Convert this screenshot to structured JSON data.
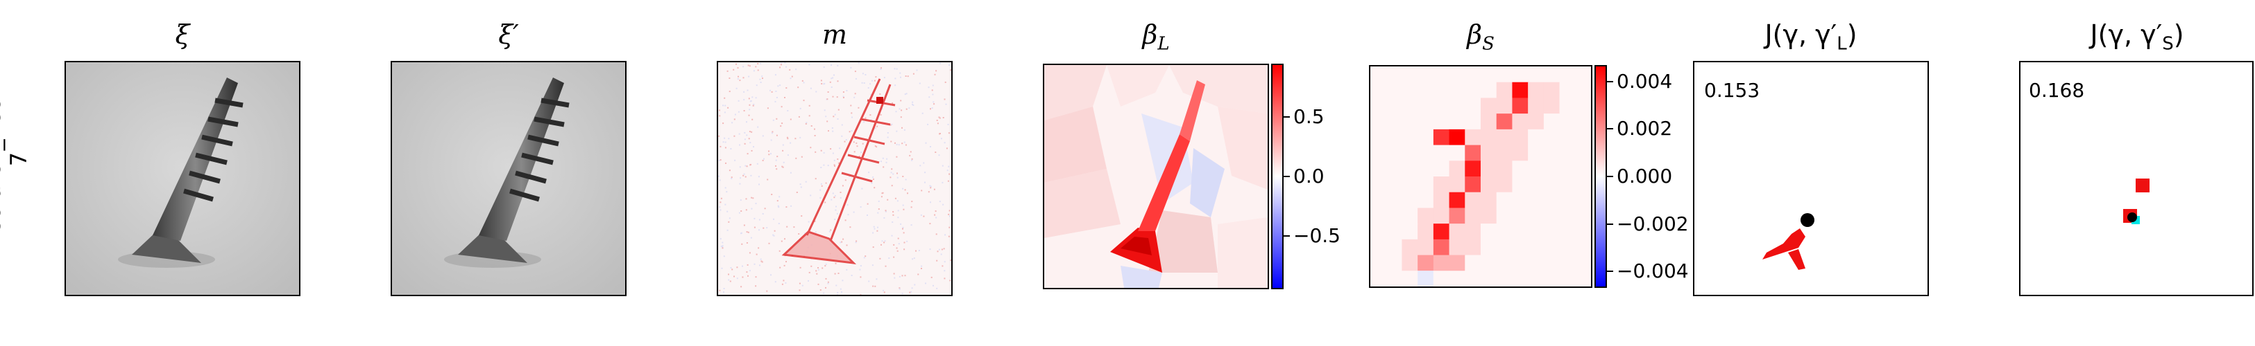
{
  "row_label": {
    "line1": "scratch_neck",
    "line2": "7"
  },
  "panels": {
    "xi": {
      "title": "ξ"
    },
    "xi_prime": {
      "title": "ξ′"
    },
    "m": {
      "title": "m"
    },
    "beta_l": {
      "title": "β",
      "sub": "L"
    },
    "beta_s": {
      "title": "β",
      "sub": "S"
    },
    "j_l": {
      "title": "J(γ, γ′",
      "sub": "L",
      "close": ")",
      "score": "0.153"
    },
    "j_s": {
      "title": "J(γ, γ′",
      "sub": "S",
      "close": ")",
      "score": "0.168"
    }
  },
  "colorbar_l": {
    "ticks": [
      "0.5",
      "0.0",
      "−0.5"
    ],
    "values": [
      0.5,
      0.0,
      -0.5
    ],
    "min": -0.95,
    "max": 0.95
  },
  "colorbar_s": {
    "ticks": [
      "0.004",
      "0.002",
      "0.000",
      "−0.002",
      "−0.004"
    ],
    "values": [
      0.004,
      0.002,
      0.0,
      -0.002,
      -0.004
    ],
    "min": -0.0047,
    "max": 0.0047
  },
  "colors": {
    "pos": "#ff0000",
    "neg": "#0000ff",
    "mid": "#ffffff",
    "black": "#000000",
    "cyan": "#00ffff"
  }
}
